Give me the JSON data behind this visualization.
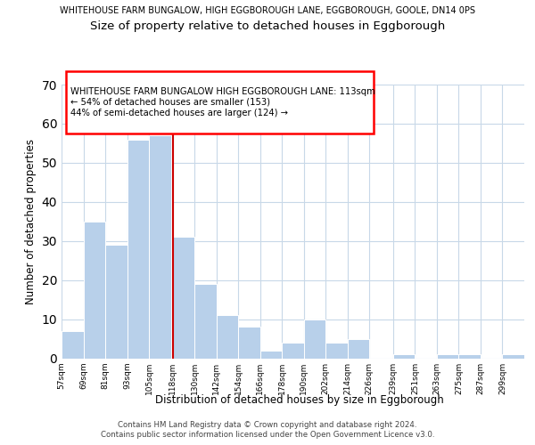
{
  "suptitle": "WHITEHOUSE FARM BUNGALOW, HIGH EGGBOROUGH LANE, EGGBOROUGH, GOOLE, DN14 0PS",
  "title": "Size of property relative to detached houses in Eggborough",
  "xlabel": "Distribution of detached houses by size in Eggborough",
  "ylabel": "Number of detached properties",
  "bin_labels": [
    "57sqm",
    "69sqm",
    "81sqm",
    "93sqm",
    "105sqm",
    "118sqm",
    "130sqm",
    "142sqm",
    "154sqm",
    "166sqm",
    "178sqm",
    "190sqm",
    "202sqm",
    "214sqm",
    "226sqm",
    "239sqm",
    "251sqm",
    "263sqm",
    "275sqm",
    "287sqm",
    "299sqm"
  ],
  "bin_edges": [
    57,
    69,
    81,
    93,
    105,
    118,
    130,
    142,
    154,
    166,
    178,
    190,
    202,
    214,
    226,
    239,
    251,
    263,
    275,
    287,
    299
  ],
  "counts": [
    7,
    35,
    29,
    56,
    57,
    31,
    19,
    11,
    8,
    2,
    4,
    10,
    4,
    5,
    0,
    1,
    0,
    1,
    1,
    0,
    1
  ],
  "bar_color": "#b8d0ea",
  "bar_edge_color": "#ffffff",
  "vline_x": 118,
  "vline_color": "#cc0000",
  "annotation_title": "WHITEHOUSE FARM BUNGALOW HIGH EGGBOROUGH LANE: 113sqm",
  "annotation_line2": "← 54% of detached houses are smaller (153)",
  "annotation_line3": "44% of semi-detached houses are larger (124) →",
  "ylim": [
    0,
    70
  ],
  "footer_line1": "Contains HM Land Registry data © Crown copyright and database right 2024.",
  "footer_line2": "Contains public sector information licensed under the Open Government Licence v3.0.",
  "background_color": "#ffffff",
  "grid_color": "#c8d8e8"
}
